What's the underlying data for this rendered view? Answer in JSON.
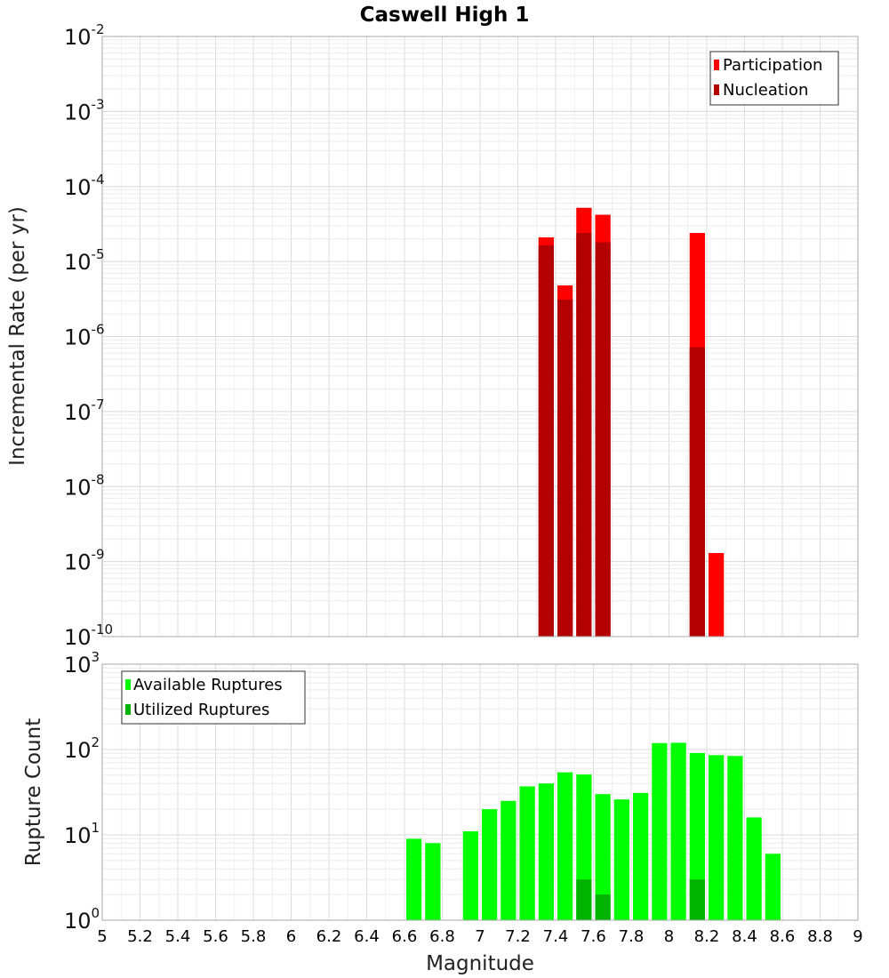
{
  "chart_data": {
    "title": "Caswell High 1",
    "xlabel": "Magnitude",
    "xlim": [
      5,
      9
    ],
    "xticks": [
      "5",
      "5.2",
      "5.4",
      "5.6",
      "5.8",
      "6",
      "6.2",
      "6.4",
      "6.6",
      "6.8",
      "7",
      "7.2",
      "7.4",
      "7.6",
      "7.8",
      "8",
      "8.2",
      "8.4",
      "8.6",
      "8.8",
      "9"
    ],
    "bin_width": 0.1,
    "panels": [
      {
        "type": "bar",
        "ylabel": "Incremental Rate (per yr)",
        "yscale": "log",
        "ylim_exp": [
          -10,
          -2
        ],
        "legend_position": "top-right",
        "series": [
          {
            "name": "Participation",
            "color": "#ff0000",
            "points": [
              [
                7.35,
                2.1e-05
              ],
              [
                7.45,
                4.8e-06
              ],
              [
                7.55,
                5.2e-05
              ],
              [
                7.65,
                4.2e-05
              ],
              [
                8.15,
                2.4e-05
              ],
              [
                8.25,
                1.3e-09
              ]
            ]
          },
          {
            "name": "Nucleation",
            "color": "#b30000",
            "points": [
              [
                7.35,
                1.65e-05
              ],
              [
                7.45,
                3.1e-06
              ],
              [
                7.55,
                2.4e-05
              ],
              [
                7.65,
                1.8e-05
              ],
              [
                8.15,
                7.2e-07
              ]
            ]
          }
        ]
      },
      {
        "type": "bar",
        "ylabel": "Rupture Count",
        "yscale": "log",
        "ylim_exp": [
          0,
          3
        ],
        "legend_position": "top-left",
        "series": [
          {
            "name": "Available Ruptures",
            "color": "#00ff00",
            "points": [
              [
                6.65,
                9
              ],
              [
                6.75,
                8
              ],
              [
                6.95,
                11
              ],
              [
                7.05,
                20
              ],
              [
                7.15,
                25
              ],
              [
                7.25,
                37
              ],
              [
                7.35,
                40
              ],
              [
                7.45,
                54
              ],
              [
                7.55,
                51
              ],
              [
                7.65,
                30
              ],
              [
                7.75,
                26
              ],
              [
                7.85,
                31
              ],
              [
                7.95,
                119
              ],
              [
                8.05,
                120
              ],
              [
                8.15,
                91
              ],
              [
                8.25,
                86
              ],
              [
                8.35,
                84
              ],
              [
                8.45,
                16
              ],
              [
                8.55,
                6
              ]
            ]
          },
          {
            "name": "Utilized Ruptures",
            "color": "#00b300",
            "points": [
              [
                7.35,
                1
              ],
              [
                7.45,
                1
              ],
              [
                7.55,
                3
              ],
              [
                7.65,
                2
              ],
              [
                8.15,
                3
              ],
              [
                8.25,
                1
              ]
            ]
          }
        ]
      }
    ]
  }
}
